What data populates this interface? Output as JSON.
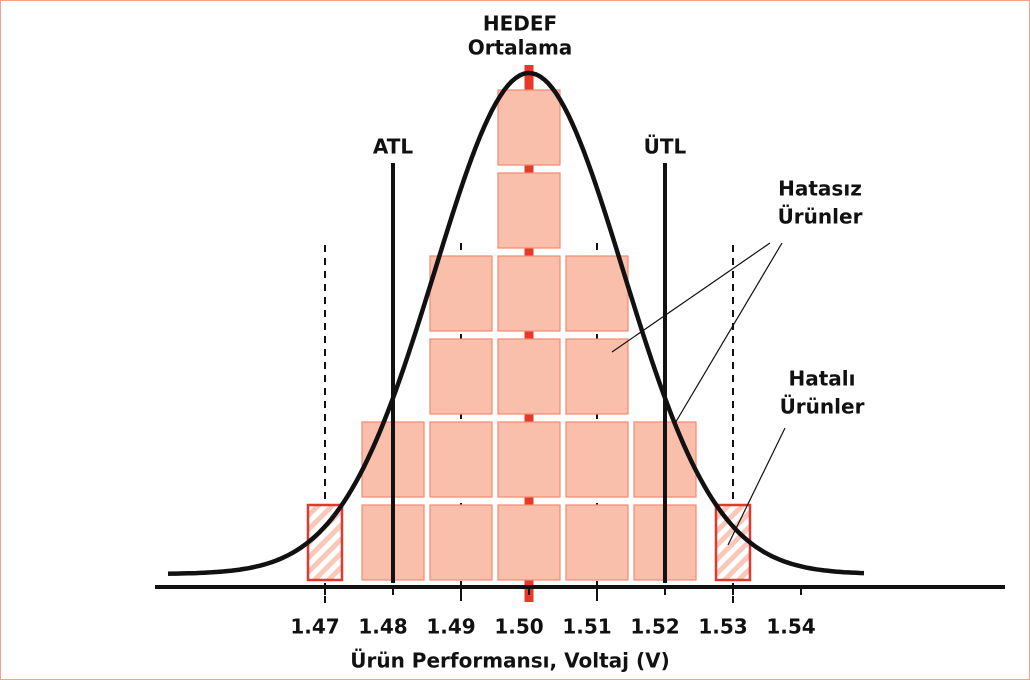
{
  "chart_data": {
    "type": "unit_histogram",
    "x": [
      1.47,
      1.48,
      1.49,
      1.5,
      1.51,
      1.52,
      1.53
    ],
    "values": [
      1,
      2,
      4,
      6,
      4,
      2,
      1
    ],
    "defective": [
      true,
      false,
      false,
      false,
      false,
      false,
      true
    ],
    "color": "#f9bfab",
    "defect_color": "#e03a30",
    "xlim": [
      1.445,
      1.57
    ],
    "xticks": [
      1.47,
      1.48,
      1.49,
      {
        "value": 1.5,
        "label": "1.50"
      },
      1.51,
      1.52,
      1.53,
      1.54
    ],
    "x_label": "Ürün Performansı, Voltaj (V)",
    "target": {
      "value": 1.5,
      "label": [
        "HEDEF",
        "Ortalama"
      ]
    },
    "lower_limit": {
      "value": 1.48,
      "label": "ATL"
    },
    "upper_limit": {
      "value": 1.52,
      "label": "ÜTL"
    },
    "annotations": [
      [
        "Hatasız",
        "Ürünler"
      ],
      [
        "Hatalı",
        "Ürünler"
      ]
    ]
  }
}
